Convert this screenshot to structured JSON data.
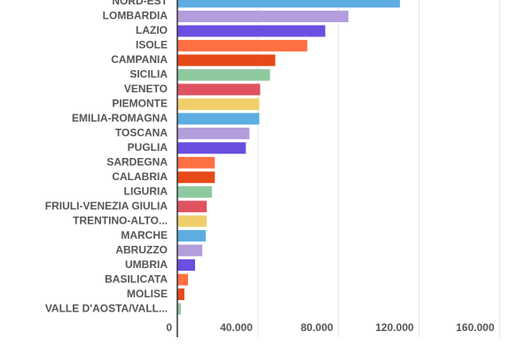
{
  "chart_data": {
    "type": "bar",
    "orientation": "horizontal",
    "categories": [
      "NORD-EST",
      "LOMBARDIA",
      "LAZIO",
      "ISOLE",
      "CAMPANIA",
      "SICILIA",
      "VENETO",
      "PIEMONTE",
      "EMILIA-ROMAGNA",
      "TOSCANA",
      "PUGLIA",
      "SARDEGNA",
      "CALABRIA",
      "LIGURIA",
      "FRIULI-VENEZIA GIULIA",
      "TRENTINO-ALTO...",
      "MARCHE",
      "ABRUZZO",
      "UMBRIA",
      "BASILICATA",
      "MOLISE",
      "VALLE D'AOSTA/VALL..."
    ],
    "values": [
      110500,
      84900,
      73400,
      64500,
      48600,
      46000,
      41100,
      40700,
      40700,
      35800,
      34000,
      18600,
      18600,
      17200,
      14600,
      14600,
      14100,
      12400,
      8800,
      5300,
      3500,
      1800
    ],
    "colors": [
      "#5dade2",
      "#b39ddb",
      "#6a4fe0",
      "#ff7043",
      "#e64a19",
      "#8fc9a0",
      "#e05260",
      "#f0cf6b",
      "#5dade2",
      "#b39ddb",
      "#6a4fe0",
      "#ff7043",
      "#e64a19",
      "#8fc9a0",
      "#e05260",
      "#f0cf6b",
      "#5dade2",
      "#b39ddb",
      "#6a4fe0",
      "#ff7043",
      "#e64a19",
      "#8fc9a0"
    ],
    "xlim": [
      0,
      176000
    ],
    "xticks": [
      0,
      {
        "value": 40000,
        "label": "40.000"
      },
      {
        "value": 80000,
        "label": "80.000"
      },
      {
        "value": 120000,
        "label": "120.000"
      },
      {
        "value": 160000,
        "label": "160.000"
      }
    ],
    "grid": true
  }
}
